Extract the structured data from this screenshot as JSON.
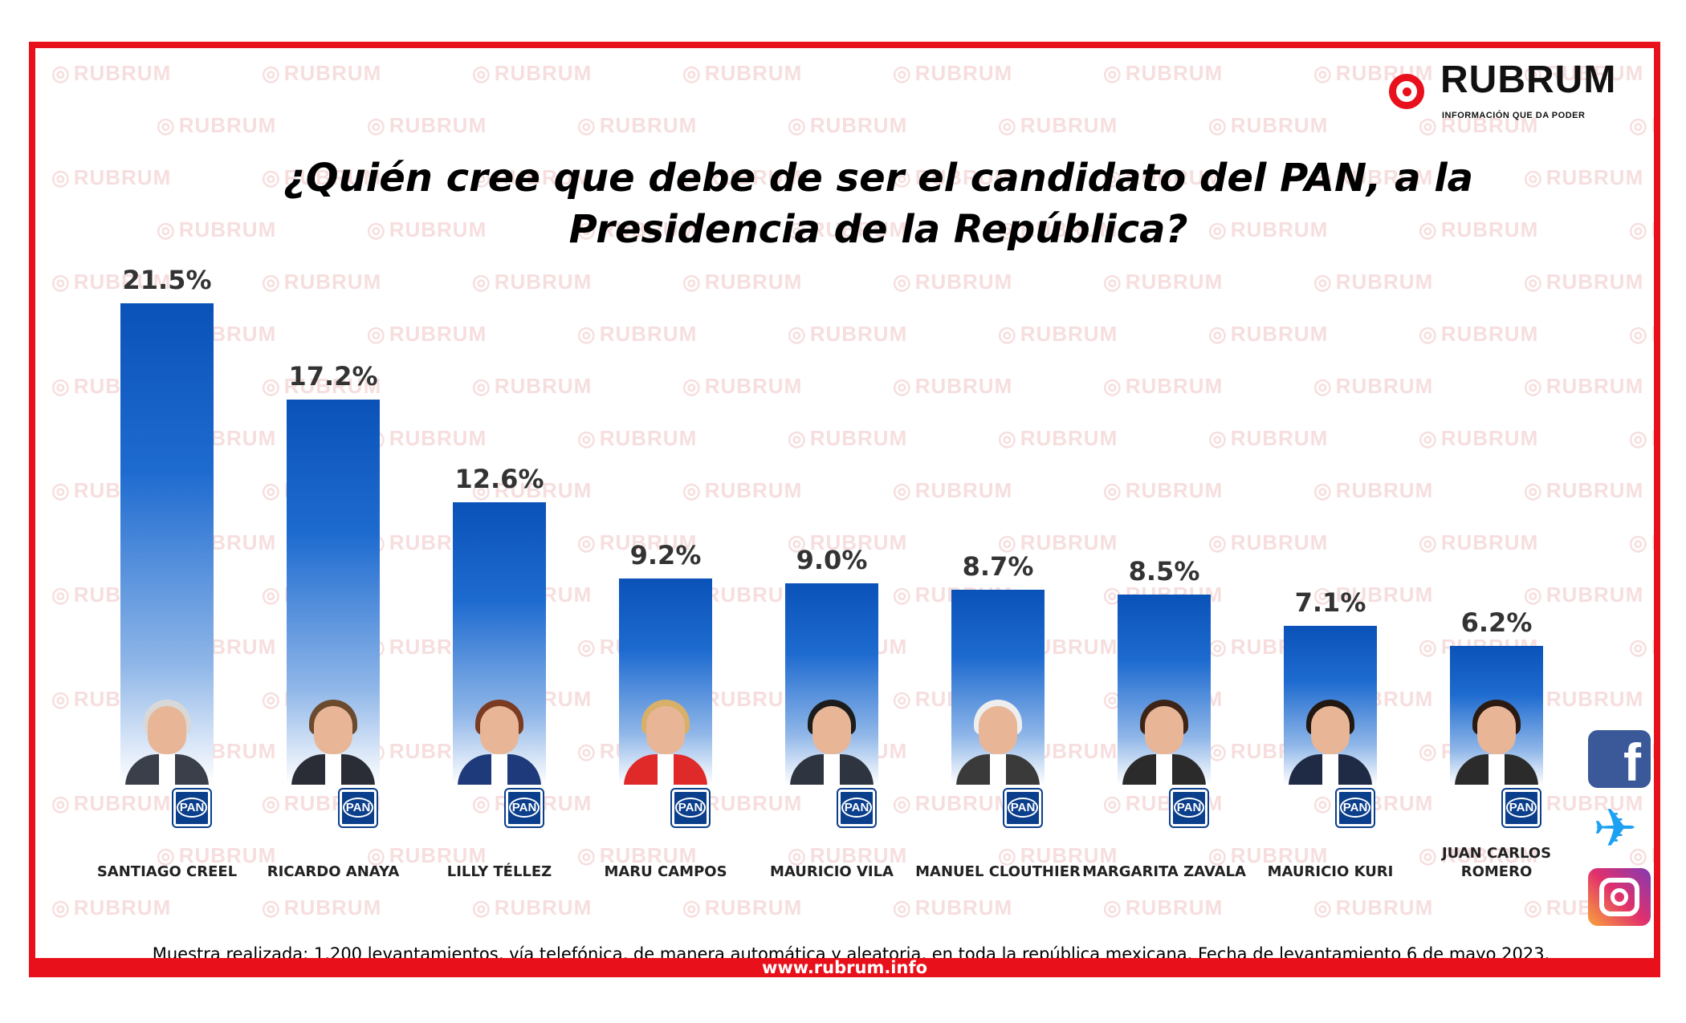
{
  "brand": {
    "name": "RUBRUM",
    "tagline": "INFORMACIÓN QUE DA PODER",
    "watermark": "RUBRUM",
    "website": "www.rubrum.info",
    "frame_color": "#e8101a"
  },
  "social_icons": [
    "facebook-icon",
    "twitter-icon",
    "instagram-icon"
  ],
  "party_badge": "PAN",
  "chart_data": {
    "type": "bar",
    "title": "¿Quién cree que debe de ser el candidato del PAN, a la Presidencia de la República?",
    "categories": [
      "SANTIAGO CREEL",
      "RICARDO ANAYA",
      "LILLY TÉLLEZ",
      "MARU CAMPOS",
      "MAURICIO VILA",
      "MANUEL CLOUTHIER",
      "MARGARITA ZAVALA",
      "MAURICIO KURI",
      "JUAN CARLOS ROMERO"
    ],
    "values": [
      21.5,
      17.2,
      12.6,
      9.2,
      9.0,
      8.7,
      8.5,
      7.1,
      6.2
    ],
    "value_labels": [
      "21.5%",
      "17.2%",
      "12.6%",
      "9.2%",
      "9.0%",
      "8.7%",
      "8.5%",
      "7.1%",
      "6.2%"
    ],
    "unit": "%",
    "bar_color": "#0a52b8",
    "grid": false,
    "legend": "none"
  },
  "note": "Muestra realizada: 1,200 levantamientos, vía telefónica, de manera automática y aleatoria, en toda la república mexicana. Fecha de levantamiento 6 de mayo 2023."
}
